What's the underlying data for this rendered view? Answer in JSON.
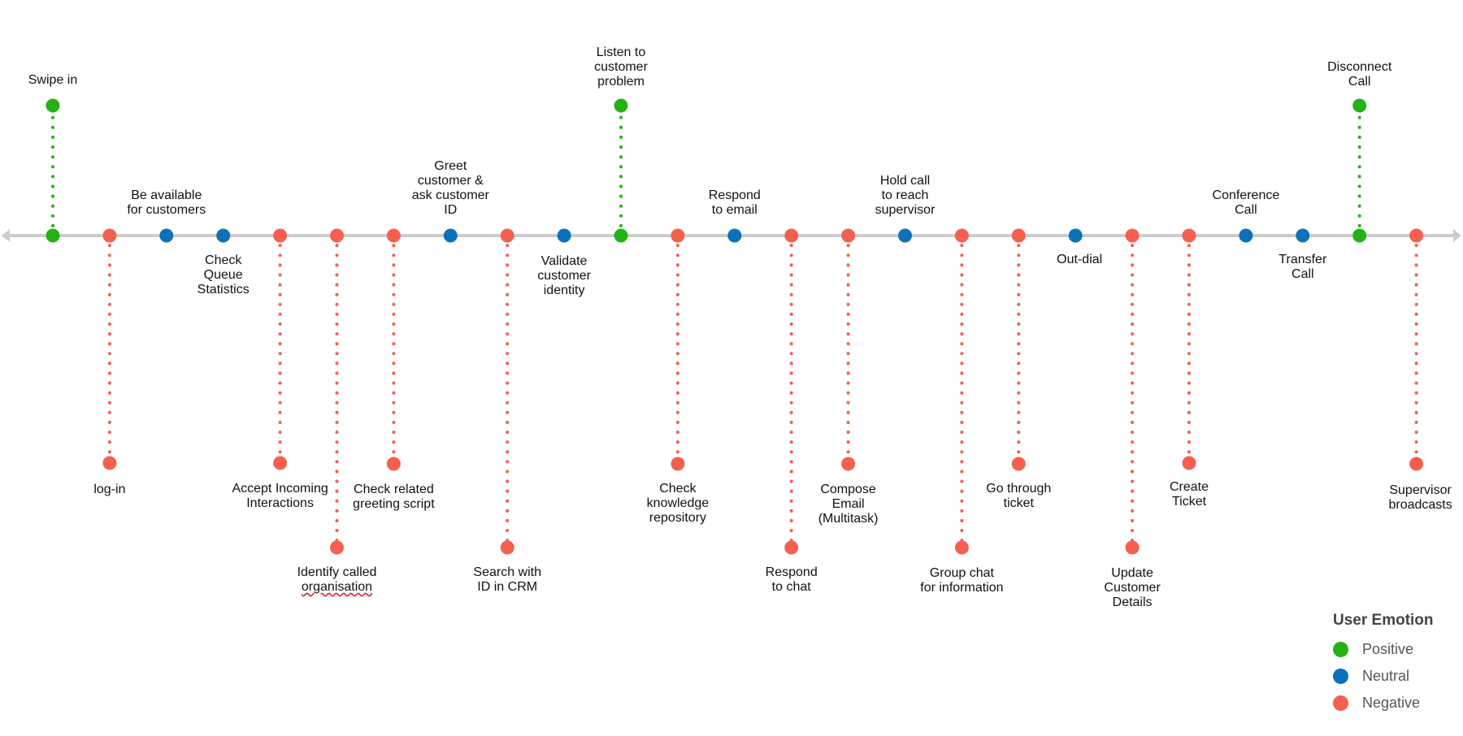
{
  "colors": {
    "positive": "#25b216",
    "neutral": "#0b72b9",
    "negative": "#f55f4e",
    "axis": "#cccccc"
  },
  "legend": {
    "title": "User Emotion",
    "items": [
      {
        "label": "Positive",
        "color": "#25b216"
      },
      {
        "label": "Neutral",
        "color": "#0b72b9"
      },
      {
        "label": "Negative",
        "color": "#f55f4e"
      }
    ]
  },
  "steps": [
    {
      "label": "Swipe in",
      "emotion": "positive"
    },
    {
      "label": "log-in",
      "emotion": "negative"
    },
    {
      "label": "Be available\nfor customers",
      "emotion": "neutral"
    },
    {
      "label": "Check\nQueue\nStatistics",
      "emotion": "neutral"
    },
    {
      "label": "Accept Incoming\nInteractions",
      "emotion": "negative"
    },
    {
      "label": "Identify called\norganisation",
      "emotion": "negative"
    },
    {
      "label": "Check related\ngreeting script",
      "emotion": "negative"
    },
    {
      "label": "Greet\ncustomer &\nask customer\nID",
      "emotion": "neutral"
    },
    {
      "label": "Search with\nID in CRM",
      "emotion": "negative"
    },
    {
      "label": "Validate\ncustomer\nidentity",
      "emotion": "neutral"
    },
    {
      "label": "Listen to\ncustomer\nproblem",
      "emotion": "positive"
    },
    {
      "label": "Check\nknowledge\nrepository",
      "emotion": "negative"
    },
    {
      "label": "Respond\nto email",
      "emotion": "neutral"
    },
    {
      "label": "Respond\nto chat",
      "emotion": "negative"
    },
    {
      "label": "Compose\nEmail\n(Multitask)",
      "emotion": "negative"
    },
    {
      "label": "Hold call\nto reach\nsupervisor",
      "emotion": "neutral"
    },
    {
      "label": "Group chat\nfor information",
      "emotion": "negative"
    },
    {
      "label": "Go through\nticket",
      "emotion": "negative"
    },
    {
      "label": "Out-dial",
      "emotion": "neutral"
    },
    {
      "label": "Update\nCustomer\nDetails",
      "emotion": "negative"
    },
    {
      "label": "Create\nTicket",
      "emotion": "negative"
    },
    {
      "label": "Conference\nCall",
      "emotion": "neutral"
    },
    {
      "label": "Transfer\nCall",
      "emotion": "neutral"
    },
    {
      "label": "Disconnect\nCall",
      "emotion": "positive"
    },
    {
      "label": "Supervisor\nbroadcasts",
      "emotion": "negative"
    }
  ]
}
